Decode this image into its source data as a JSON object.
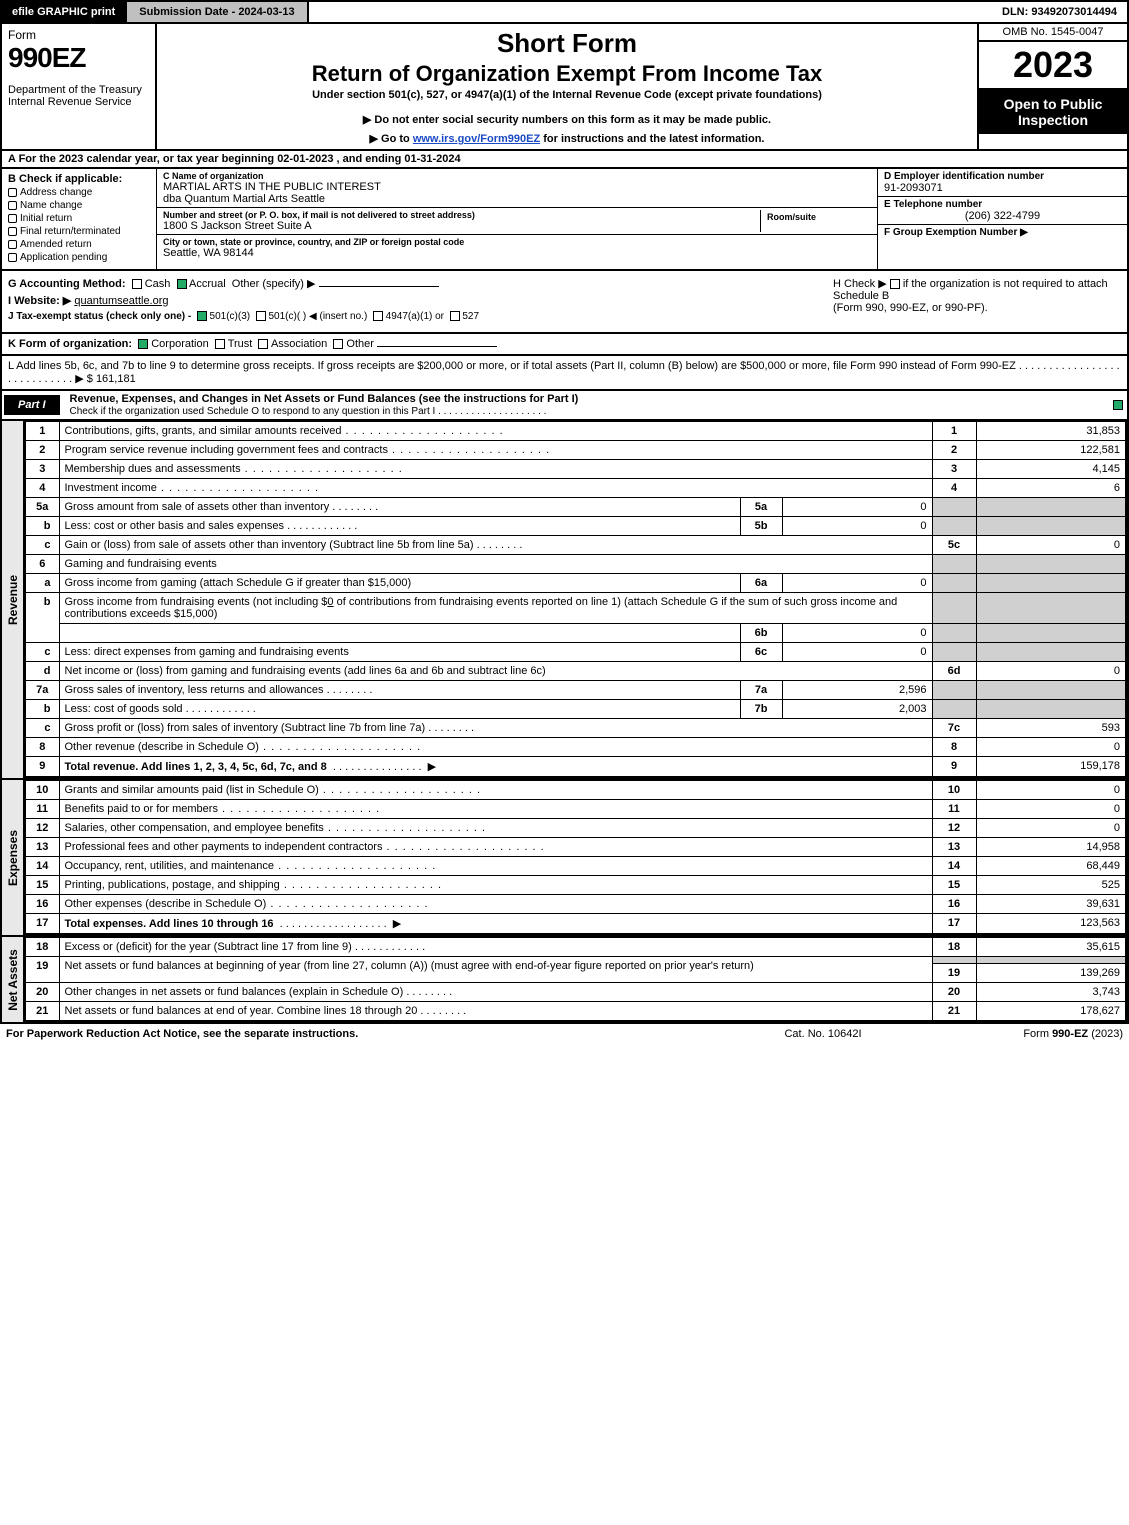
{
  "topbar": {
    "efile": "efile GRAPHIC print",
    "submission": "Submission Date - 2024-03-13",
    "dln": "DLN: 93492073014494"
  },
  "header": {
    "form_word": "Form",
    "form_num": "990EZ",
    "dept": "Department of the Treasury Internal Revenue Service",
    "short": "Short Form",
    "return_title": "Return of Organization Exempt From Income Tax",
    "under": "Under section 501(c), 527, or 4947(a)(1) of the Internal Revenue Code (except private foundations)",
    "do_not": "▶ Do not enter social security numbers on this form as it may be made public.",
    "goto_pre": "▶ Go to ",
    "goto_link": "www.irs.gov/Form990EZ",
    "goto_post": " for instructions and the latest information.",
    "omb": "OMB No. 1545-0047",
    "year": "2023",
    "open": "Open to Public Inspection"
  },
  "line_a": "A  For the 2023 calendar year, or tax year beginning 02-01-2023 , and ending 01-31-2024",
  "box_b": {
    "title": "B  Check if applicable:",
    "items": [
      "Address change",
      "Name change",
      "Initial return",
      "Final return/terminated",
      "Amended return",
      "Application pending"
    ]
  },
  "box_c": {
    "name_lbl": "C Name of organization",
    "name": "MARTIAL ARTS IN THE PUBLIC INTEREST",
    "dba": "dba Quantum Martial Arts Seattle",
    "addr_lbl": "Number and street (or P. O. box, if mail is not delivered to street address)",
    "addr": "1800 S Jackson Street Suite A",
    "room_lbl": "Room/suite",
    "city_lbl": "City or town, state or province, country, and ZIP or foreign postal code",
    "city": "Seattle, WA  98144"
  },
  "box_d": {
    "lbl": "D Employer identification number",
    "val": "91-2093071"
  },
  "box_e": {
    "lbl": "E Telephone number",
    "val": "(206) 322-4799"
  },
  "box_f": {
    "lbl": "F Group Exemption Number   ▶",
    "val": ""
  },
  "box_g": {
    "label": "G Accounting Method:",
    "cash": "Cash",
    "accrual": "Accrual",
    "other": "Other (specify) ▶"
  },
  "box_h": {
    "text1": "H  Check ▶",
    "text2": " if the organization is not required to attach Schedule B",
    "text3": "(Form 990, 990-EZ, or 990-PF)."
  },
  "box_i": {
    "lbl": "I Website: ▶",
    "val": "quantumseattle.org"
  },
  "box_j": {
    "lbl": "J Tax-exempt status (check only one) -",
    "c3": "501(c)(3)",
    "c": "501(c)(  ) ◀ (insert no.)",
    "a1": "4947(a)(1) or",
    "s527": "527"
  },
  "box_k": {
    "lbl": "K Form of organization:",
    "corp": "Corporation",
    "trust": "Trust",
    "assoc": "Association",
    "other": "Other"
  },
  "box_l": {
    "text": "L Add lines 5b, 6c, and 7b to line 9 to determine gross receipts. If gross receipts are $200,000 or more, or if total assets (Part II, column (B) below) are $500,000 or more, file Form 990 instead of Form 990-EZ  .  .  .  .  .  .  .  .  .  .  .  .  .  .  .  .  .  .  .  .  .  .  .  .  .  .  .  .   ▶ $",
    "amount": "161,181"
  },
  "part1": {
    "tag": "Part I",
    "title": "Revenue, Expenses, and Changes in Net Assets or Fund Balances (see the instructions for Part I)",
    "sub": "Check if the organization used Schedule O to respond to any question in this Part I  .  .  .  .  .  .  .  .  .  .  .  .  .  .  .  .  .  .  .  .  "
  },
  "revenue_label": "Revenue",
  "expenses_label": "Expenses",
  "netassets_label": "Net Assets",
  "lines": {
    "l1": {
      "n": "1",
      "d": "Contributions, gifts, grants, and similar amounts received",
      "num": "1",
      "amt": "31,853"
    },
    "l2": {
      "n": "2",
      "d": "Program service revenue including government fees and contracts",
      "num": "2",
      "amt": "122,581"
    },
    "l3": {
      "n": "3",
      "d": "Membership dues and assessments",
      "num": "3",
      "amt": "4,145"
    },
    "l4": {
      "n": "4",
      "d": "Investment income",
      "num": "4",
      "amt": "6"
    },
    "l5a": {
      "n": "5a",
      "d": "Gross amount from sale of assets other than inventory",
      "box": "5a",
      "val": "0"
    },
    "l5b": {
      "n": "b",
      "d": "Less: cost or other basis and sales expenses",
      "box": "5b",
      "val": "0"
    },
    "l5c": {
      "n": "c",
      "d": "Gain or (loss) from sale of assets other than inventory (Subtract line 5b from line 5a)",
      "num": "5c",
      "amt": "0"
    },
    "l6": {
      "n": "6",
      "d": "Gaming and fundraising events"
    },
    "l6a": {
      "n": "a",
      "d": "Gross income from gaming (attach Schedule G if greater than $15,000)",
      "box": "6a",
      "val": "0"
    },
    "l6b": {
      "n": "b",
      "d1": "Gross income from fundraising events (not including $",
      "d1b": "0",
      "d2": " of contributions from fundraising events reported on line 1) (attach Schedule G if the sum of such gross income and contributions exceeds $15,000)",
      "box": "6b",
      "val": "0"
    },
    "l6c": {
      "n": "c",
      "d": "Less: direct expenses from gaming and fundraising events",
      "box": "6c",
      "val": "0"
    },
    "l6d": {
      "n": "d",
      "d": "Net income or (loss) from gaming and fundraising events (add lines 6a and 6b and subtract line 6c)",
      "num": "6d",
      "amt": "0"
    },
    "l7a": {
      "n": "7a",
      "d": "Gross sales of inventory, less returns and allowances",
      "box": "7a",
      "val": "2,596"
    },
    "l7b": {
      "n": "b",
      "d": "Less: cost of goods sold",
      "box": "7b",
      "val": "2,003"
    },
    "l7c": {
      "n": "c",
      "d": "Gross profit or (loss) from sales of inventory (Subtract line 7b from line 7a)",
      "num": "7c",
      "amt": "593"
    },
    "l8": {
      "n": "8",
      "d": "Other revenue (describe in Schedule O)",
      "num": "8",
      "amt": "0"
    },
    "l9": {
      "n": "9",
      "d": "Total revenue. Add lines 1, 2, 3, 4, 5c, 6d, 7c, and 8",
      "num": "9",
      "amt": "159,178"
    },
    "l10": {
      "n": "10",
      "d": "Grants and similar amounts paid (list in Schedule O)",
      "num": "10",
      "amt": "0"
    },
    "l11": {
      "n": "11",
      "d": "Benefits paid to or for members",
      "num": "11",
      "amt": "0"
    },
    "l12": {
      "n": "12",
      "d": "Salaries, other compensation, and employee benefits",
      "num": "12",
      "amt": "0"
    },
    "l13": {
      "n": "13",
      "d": "Professional fees and other payments to independent contractors",
      "num": "13",
      "amt": "14,958"
    },
    "l14": {
      "n": "14",
      "d": "Occupancy, rent, utilities, and maintenance",
      "num": "14",
      "amt": "68,449"
    },
    "l15": {
      "n": "15",
      "d": "Printing, publications, postage, and shipping",
      "num": "15",
      "amt": "525"
    },
    "l16": {
      "n": "16",
      "d": "Other expenses (describe in Schedule O)",
      "num": "16",
      "amt": "39,631"
    },
    "l17": {
      "n": "17",
      "d": "Total expenses. Add lines 10 through 16",
      "num": "17",
      "amt": "123,563"
    },
    "l18": {
      "n": "18",
      "d": "Excess or (deficit) for the year (Subtract line 17 from line 9)",
      "num": "18",
      "amt": "35,615"
    },
    "l19": {
      "n": "19",
      "d": "Net assets or fund balances at beginning of year (from line 27, column (A)) (must agree with end-of-year figure reported on prior year's return)",
      "num": "19",
      "amt": "139,269"
    },
    "l20": {
      "n": "20",
      "d": "Other changes in net assets or fund balances (explain in Schedule O)",
      "num": "20",
      "amt": "3,743"
    },
    "l21": {
      "n": "21",
      "d": "Net assets or fund balances at end of year. Combine lines 18 through 20",
      "num": "21",
      "amt": "178,627"
    }
  },
  "footer": {
    "left": "For Paperwork Reduction Act Notice, see the separate instructions.",
    "mid": "Cat. No. 10642I",
    "right_pre": "Form ",
    "right_b": "990-EZ",
    "right_post": " (2023)"
  }
}
